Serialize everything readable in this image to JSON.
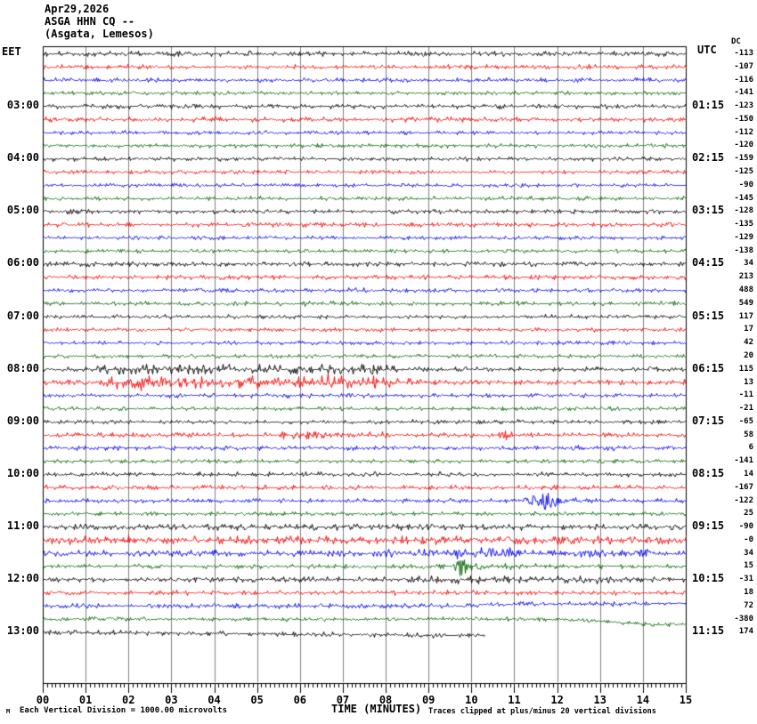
{
  "chart_data": {
    "type": "line",
    "subtype": "helicorder-seismogram",
    "date": "Apr29,2026",
    "station": "ASGA HHN CQ --",
    "location": "(Asgata, Lemesos)",
    "dc_title": "DC",
    "scale_note": "Each Vertical Division = 1000.00 microvolts",
    "clip_note": "Traces clipped at plus/minus 20 vertical divisions",
    "watermark": "M",
    "x": {
      "label": "TIME (MINUTES)",
      "range": [
        0,
        15
      ],
      "major_tick": 1,
      "minor_tick": 0.1,
      "tick_labels": [
        "00",
        "01",
        "02",
        "03",
        "04",
        "05",
        "06",
        "07",
        "08",
        "09",
        "10",
        "11",
        "12",
        "13",
        "14",
        "15"
      ]
    },
    "left_axis": {
      "title": "EET",
      "hour_labels": [
        "03:00",
        "04:00",
        "05:00",
        "06:00",
        "07:00",
        "08:00",
        "09:00",
        "10:00",
        "11:00",
        "12:00",
        "13:00"
      ]
    },
    "right_axis": {
      "title": "UTC",
      "hour_labels": [
        "01:15",
        "02:15",
        "03:15",
        "04:15",
        "05:15",
        "06:15",
        "07:15",
        "08:15",
        "09:15",
        "10:15",
        "11:15"
      ]
    },
    "grid": true,
    "grid_color": "#7f7f7f",
    "colors": {
      "black": "#000000",
      "red": "#f50000",
      "blue": "#0000f0",
      "green": "#006400"
    },
    "rows": [
      {
        "color": "black",
        "dc": "-113",
        "na": 1.3
      },
      {
        "color": "red",
        "dc": "-107",
        "na": 1.1
      },
      {
        "color": "blue",
        "dc": "-116",
        "na": 1.1
      },
      {
        "color": "green",
        "dc": "-141",
        "na": 1.0
      },
      {
        "color": "black",
        "dc": "-123",
        "eet": "03:00",
        "utc": "01:15",
        "na": 1.2
      },
      {
        "color": "red",
        "dc": "-150",
        "na": 1.3
      },
      {
        "color": "blue",
        "dc": "-112",
        "na": 1.0
      },
      {
        "color": "green",
        "dc": "-120",
        "na": 1.0
      },
      {
        "color": "black",
        "dc": "-159",
        "eet": "04:00",
        "utc": "02:15",
        "na": 1.1
      },
      {
        "color": "red",
        "dc": "-125",
        "na": 1.1
      },
      {
        "color": "blue",
        "dc": "-90",
        "na": 1.0
      },
      {
        "color": "green",
        "dc": "-145",
        "na": 1.0
      },
      {
        "color": "black",
        "dc": "-128",
        "eet": "05:00",
        "utc": "03:15",
        "na": 1.1
      },
      {
        "color": "red",
        "dc": "-135",
        "na": 1.2
      },
      {
        "color": "blue",
        "dc": "-129",
        "na": 1.0
      },
      {
        "color": "green",
        "dc": "-138",
        "na": 1.0
      },
      {
        "color": "black",
        "dc": "34",
        "eet": "06:00",
        "utc": "04:15",
        "na": 1.3
      },
      {
        "color": "red",
        "dc": "213",
        "na": 1.2
      },
      {
        "color": "blue",
        "dc": "488",
        "na": 1.1,
        "ev": [
          [
            7.35,
            2.5,
            0.25
          ]
        ]
      },
      {
        "color": "green",
        "dc": "549",
        "na": 1.1,
        "ev": [
          [
            6.5,
            1.8,
            0.3
          ]
        ]
      },
      {
        "color": "black",
        "dc": "117",
        "eet": "07:00",
        "utc": "05:15",
        "na": 1.0
      },
      {
        "color": "red",
        "dc": "17",
        "na": 1.0
      },
      {
        "color": "blue",
        "dc": "42",
        "na": 1.0
      },
      {
        "color": "green",
        "dc": "20",
        "na": 1.0
      },
      {
        "color": "black",
        "dc": "115",
        "eet": "08:00",
        "utc": "06:15",
        "na": 1.2,
        "bd": [
          [
            0.8,
            8.3,
            1.4
          ]
        ]
      },
      {
        "color": "red",
        "dc": "13",
        "na": 1.4,
        "bd": [
          [
            1.4,
            8.6,
            1.8
          ]
        ],
        "ev": [
          [
            2.3,
            4.5,
            0.5
          ],
          [
            4.9,
            3.5,
            0.6
          ],
          [
            6.7,
            3.5,
            0.5
          ]
        ]
      },
      {
        "color": "blue",
        "dc": "-11",
        "na": 1.1
      },
      {
        "color": "green",
        "dc": "-21",
        "na": 1.0,
        "ev": [
          [
            11.5,
            2,
            0.15
          ],
          [
            12.1,
            3.5,
            0.06
          ]
        ]
      },
      {
        "color": "black",
        "dc": "-65",
        "eet": "09:00",
        "utc": "07:15",
        "na": 1.1
      },
      {
        "color": "red",
        "dc": "58",
        "na": 1.2,
        "bd": [
          [
            5.3,
            8,
            0.8
          ]
        ],
        "ev": [
          [
            10.75,
            5,
            0.12
          ]
        ]
      },
      {
        "color": "blue",
        "dc": "6",
        "na": 1.2,
        "ev": [
          [
            12.35,
            3.5,
            0.18
          ]
        ]
      },
      {
        "color": "green",
        "dc": "-141",
        "na": 1.0,
        "ev": [
          [
            12.15,
            1.8,
            0.1
          ]
        ]
      },
      {
        "color": "black",
        "dc": "14",
        "eet": "10:00",
        "utc": "08:15",
        "na": 1.2
      },
      {
        "color": "red",
        "dc": "-167",
        "na": 1.2
      },
      {
        "color": "blue",
        "dc": "-122",
        "na": 1.1,
        "ev": [
          [
            11.7,
            10,
            0.22
          ]
        ],
        "bd": [
          [
            11.2,
            12.5,
            1
          ]
        ]
      },
      {
        "color": "green",
        "dc": "25",
        "na": 1.0
      },
      {
        "color": "black",
        "dc": "-90",
        "eet": "11:00",
        "utc": "09:15",
        "na": 1.6
      },
      {
        "color": "red",
        "dc": "-0",
        "na": 2.2,
        "ev": [
          [
            0.3,
            2.5,
            0.4
          ],
          [
            2.1,
            2.5,
            0.5
          ],
          [
            5.6,
            2,
            0.6
          ],
          [
            9.9,
            2.5,
            0.4
          ],
          [
            13.9,
            2.5,
            0.3
          ]
        ]
      },
      {
        "color": "blue",
        "dc": "34",
        "na": 1.7,
        "ev": [
          [
            8,
            2.2,
            0.3
          ],
          [
            9,
            2.8,
            0.25
          ],
          [
            9.65,
            3.5,
            0.2
          ],
          [
            10.15,
            2.8,
            0.15
          ],
          [
            10.65,
            5.5,
            0.25
          ],
          [
            12.6,
            2.2,
            0.5
          ],
          [
            14,
            6.5,
            0.12
          ]
        ]
      },
      {
        "color": "green",
        "dc": "15",
        "na": 1.1,
        "ev": [
          [
            9.75,
            14,
            0.09
          ]
        ],
        "bd": [
          [
            9.4,
            11.5,
            0.9
          ]
        ]
      },
      {
        "color": "black",
        "dc": "-31",
        "eet": "12:00",
        "utc": "10:15",
        "na": 1.4,
        "bd": [
          [
            8,
            13.5,
            0.6
          ]
        ]
      },
      {
        "color": "red",
        "dc": "18",
        "na": 1.2
      },
      {
        "color": "blue",
        "dc": "72",
        "na": 1.3,
        "dr": [
          [
            0,
            0
          ],
          [
            9.8,
            0
          ],
          [
            10.4,
            -2
          ],
          [
            15,
            -2.5
          ]
        ]
      },
      {
        "color": "green",
        "dc": "-380",
        "na": 1.0,
        "ev": [
          [
            1.6,
            2.2,
            0.3
          ]
        ],
        "dr": [
          [
            0,
            0
          ],
          [
            12,
            0
          ],
          [
            14.2,
            6
          ],
          [
            15,
            6
          ]
        ]
      },
      {
        "color": "black",
        "dc": "174",
        "eet": "13:00",
        "utc": "11:15",
        "na": 1.2,
        "ext": [
          0,
          10.3
        ],
        "dr": [
          [
            0,
            0
          ],
          [
            10.3,
            4
          ]
        ],
        "ev": [
          [
            3.5,
            1.5,
            0.05
          ],
          [
            9.2,
            1.8,
            0.1
          ]
        ]
      }
    ]
  }
}
